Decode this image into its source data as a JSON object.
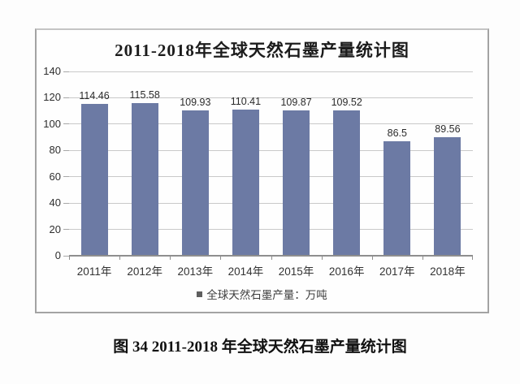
{
  "figure": {
    "caption": "图 34 2011-2018 年全球天然石墨产量统计图"
  },
  "chart_data": {
    "type": "bar",
    "title": "2011-2018年全球天然石墨产量统计图",
    "categories": [
      "2011年",
      "2012年",
      "2013年",
      "2014年",
      "2015年",
      "2016年",
      "2017年",
      "2018年"
    ],
    "values": [
      114.46,
      115.58,
      109.93,
      110.41,
      109.87,
      109.52,
      86.5,
      89.56
    ],
    "value_labels": [
      "114.46",
      "115.58",
      "109.93",
      "110.41",
      "109.87",
      "109.52",
      "86.5",
      "89.56"
    ],
    "series_name": "全球天然石墨产量：万吨",
    "ylim": [
      0,
      140
    ],
    "yticks": [
      0,
      20,
      40,
      60,
      80,
      100,
      120,
      140
    ],
    "grid": true,
    "legend_position": "bottom",
    "colors": {
      "bar": "#6c7aa4",
      "gridline": "#c9c9c9",
      "axis": "#8e8e8e",
      "legend_marker": "#5e5e5e"
    }
  }
}
